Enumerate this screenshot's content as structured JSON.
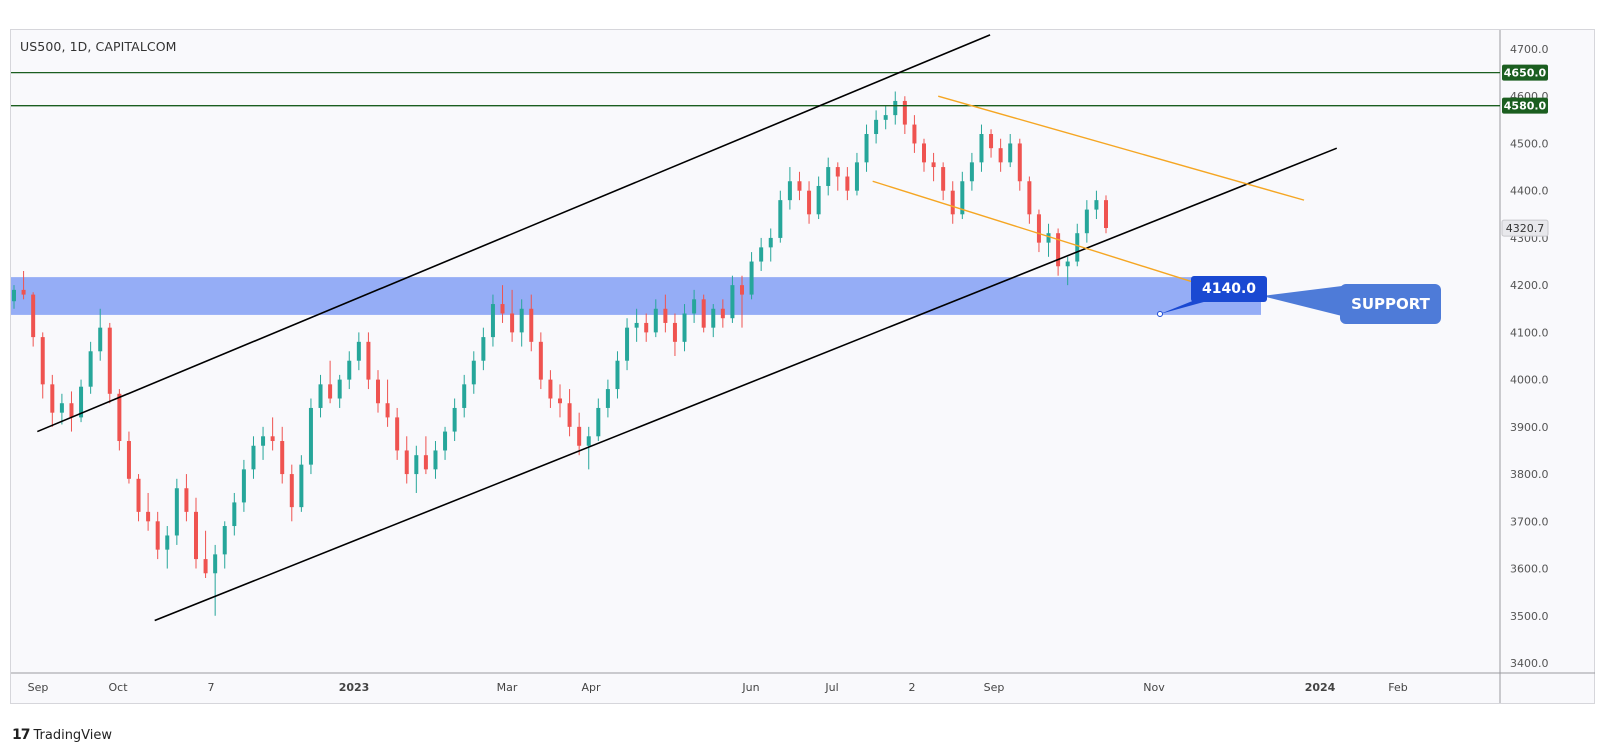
{
  "header": {
    "symbol_title": "US500, 1D, CAPITALCOM"
  },
  "footer": {
    "brand_logo": "17",
    "brand_name": "TradingView"
  },
  "annotations": {
    "price_callout": "4140.0",
    "support_callout": "SUPPORT"
  },
  "colors": {
    "up_candle": "#26a69a",
    "down_candle": "#ef5350",
    "support_zone": "#8fa9f6",
    "horizontal_level": "#1b5e20",
    "channel_line": "#000000",
    "flag_line": "#f5a623",
    "price_label_bg": "#1b5e20",
    "callout_blue": "#1a49d2"
  },
  "chart_data": {
    "type": "candlestick",
    "title": "US500, 1D, CAPITALCOM",
    "ylim": [
      3400,
      4700
    ],
    "y_ticks": [
      "3400.0",
      "3500.0",
      "3600.0",
      "3700.0",
      "3800.0",
      "3900.0",
      "4000.0",
      "4100.0",
      "4200.0",
      "4300.0",
      "4400.0",
      "4500.0",
      "4600.0",
      "4700.0"
    ],
    "x_ticks": [
      "Sep",
      "Oct",
      "7",
      "2023",
      "Mar",
      "Apr",
      "Jun",
      "Jul",
      "2",
      "Sep",
      "Nov",
      "2024",
      "Feb"
    ],
    "price_labels": [
      {
        "value": 4650.0,
        "text": "4650.0"
      },
      {
        "value": 4580.0,
        "text": "4580.0"
      },
      {
        "value": 4320.7,
        "text": "4320.7"
      }
    ],
    "support_zone": {
      "low": 4137,
      "high": 4217
    },
    "horizontal_levels": [
      4650,
      4580
    ],
    "ohlc": [
      [
        4166,
        4200,
        4150,
        4190
      ],
      [
        4190,
        4230,
        4170,
        4180
      ],
      [
        4180,
        4185,
        4070,
        4090
      ],
      [
        4090,
        4100,
        3960,
        3990
      ],
      [
        3990,
        4010,
        3900,
        3930
      ],
      [
        3930,
        3970,
        3905,
        3950
      ],
      [
        3950,
        3975,
        3890,
        3920
      ],
      [
        3920,
        4000,
        3910,
        3985
      ],
      [
        3985,
        4080,
        3970,
        4060
      ],
      [
        4060,
        4150,
        4040,
        4110
      ],
      [
        4110,
        4120,
        3950,
        3970
      ],
      [
        3970,
        3980,
        3850,
        3870
      ],
      [
        3870,
        3890,
        3780,
        3790
      ],
      [
        3790,
        3800,
        3700,
        3720
      ],
      [
        3720,
        3760,
        3680,
        3700
      ],
      [
        3700,
        3720,
        3620,
        3640
      ],
      [
        3640,
        3690,
        3600,
        3670
      ],
      [
        3670,
        3790,
        3650,
        3770
      ],
      [
        3770,
        3800,
        3700,
        3720
      ],
      [
        3720,
        3750,
        3600,
        3620
      ],
      [
        3620,
        3680,
        3580,
        3590
      ],
      [
        3590,
        3650,
        3500,
        3630
      ],
      [
        3630,
        3700,
        3600,
        3690
      ],
      [
        3690,
        3760,
        3670,
        3740
      ],
      [
        3740,
        3830,
        3720,
        3810
      ],
      [
        3810,
        3880,
        3790,
        3860
      ],
      [
        3860,
        3900,
        3830,
        3880
      ],
      [
        3880,
        3920,
        3850,
        3870
      ],
      [
        3870,
        3900,
        3780,
        3800
      ],
      [
        3800,
        3820,
        3700,
        3730
      ],
      [
        3730,
        3840,
        3720,
        3820
      ],
      [
        3820,
        3960,
        3800,
        3940
      ],
      [
        3940,
        4010,
        3920,
        3990
      ],
      [
        3990,
        4040,
        3950,
        3960
      ],
      [
        3960,
        4010,
        3940,
        4000
      ],
      [
        4000,
        4060,
        3980,
        4040
      ],
      [
        4040,
        4100,
        4020,
        4080
      ],
      [
        4080,
        4100,
        3980,
        4000
      ],
      [
        4000,
        4020,
        3930,
        3950
      ],
      [
        3950,
        4000,
        3900,
        3920
      ],
      [
        3920,
        3940,
        3830,
        3850
      ],
      [
        3850,
        3880,
        3780,
        3800
      ],
      [
        3800,
        3860,
        3760,
        3840
      ],
      [
        3840,
        3880,
        3800,
        3810
      ],
      [
        3810,
        3870,
        3790,
        3850
      ],
      [
        3850,
        3900,
        3830,
        3890
      ],
      [
        3890,
        3960,
        3870,
        3940
      ],
      [
        3940,
        4010,
        3920,
        3990
      ],
      [
        3990,
        4060,
        3970,
        4040
      ],
      [
        4040,
        4110,
        4020,
        4090
      ],
      [
        4090,
        4180,
        4070,
        4160
      ],
      [
        4160,
        4200,
        4120,
        4140
      ],
      [
        4140,
        4190,
        4080,
        4100
      ],
      [
        4100,
        4170,
        4070,
        4150
      ],
      [
        4150,
        4180,
        4060,
        4080
      ],
      [
        4080,
        4100,
        3980,
        4000
      ],
      [
        4000,
        4020,
        3940,
        3960
      ],
      [
        3960,
        3990,
        3920,
        3950
      ],
      [
        3950,
        3980,
        3880,
        3900
      ],
      [
        3900,
        3930,
        3840,
        3860
      ],
      [
        3860,
        3900,
        3810,
        3880
      ],
      [
        3880,
        3960,
        3870,
        3940
      ],
      [
        3940,
        4000,
        3920,
        3980
      ],
      [
        3980,
        4060,
        3960,
        4040
      ],
      [
        4040,
        4130,
        4020,
        4110
      ],
      [
        4110,
        4150,
        4080,
        4120
      ],
      [
        4120,
        4140,
        4080,
        4100
      ],
      [
        4100,
        4170,
        4090,
        4150
      ],
      [
        4150,
        4180,
        4100,
        4120
      ],
      [
        4120,
        4140,
        4050,
        4080
      ],
      [
        4080,
        4160,
        4060,
        4140
      ],
      [
        4140,
        4190,
        4120,
        4170
      ],
      [
        4170,
        4180,
        4100,
        4110
      ],
      [
        4110,
        4160,
        4090,
        4150
      ],
      [
        4150,
        4170,
        4110,
        4130
      ],
      [
        4130,
        4220,
        4120,
        4200
      ],
      [
        4200,
        4220,
        4110,
        4180
      ],
      [
        4180,
        4270,
        4170,
        4250
      ],
      [
        4250,
        4300,
        4230,
        4280
      ],
      [
        4280,
        4320,
        4250,
        4300
      ],
      [
        4300,
        4400,
        4290,
        4380
      ],
      [
        4380,
        4450,
        4360,
        4420
      ],
      [
        4420,
        4440,
        4380,
        4400
      ],
      [
        4400,
        4420,
        4330,
        4350
      ],
      [
        4350,
        4430,
        4340,
        4410
      ],
      [
        4410,
        4470,
        4390,
        4450
      ],
      [
        4450,
        4460,
        4400,
        4430
      ],
      [
        4430,
        4450,
        4380,
        4400
      ],
      [
        4400,
        4480,
        4390,
        4460
      ],
      [
        4460,
        4540,
        4440,
        4520
      ],
      [
        4520,
        4570,
        4500,
        4550
      ],
      [
        4550,
        4580,
        4530,
        4560
      ],
      [
        4560,
        4610,
        4540,
        4590
      ],
      [
        4590,
        4600,
        4520,
        4540
      ],
      [
        4540,
        4560,
        4480,
        4500
      ],
      [
        4500,
        4510,
        4440,
        4460
      ],
      [
        4460,
        4480,
        4420,
        4450
      ],
      [
        4450,
        4460,
        4380,
        4400
      ],
      [
        4400,
        4420,
        4330,
        4350
      ],
      [
        4350,
        4440,
        4340,
        4420
      ],
      [
        4420,
        4480,
        4400,
        4460
      ],
      [
        4460,
        4540,
        4440,
        4520
      ],
      [
        4520,
        4530,
        4470,
        4490
      ],
      [
        4490,
        4510,
        4440,
        4460
      ],
      [
        4460,
        4520,
        4450,
        4500
      ],
      [
        4500,
        4510,
        4400,
        4420
      ],
      [
        4420,
        4430,
        4330,
        4350
      ],
      [
        4350,
        4360,
        4270,
        4290
      ],
      [
        4290,
        4330,
        4260,
        4310
      ],
      [
        4310,
        4320,
        4220,
        4240
      ],
      [
        4240,
        4260,
        4200,
        4250
      ],
      [
        4250,
        4330,
        4240,
        4310
      ],
      [
        4310,
        4380,
        4290,
        4360
      ],
      [
        4360,
        4400,
        4340,
        4380
      ],
      [
        4380,
        4390,
        4310,
        4321
      ]
    ],
    "trendlines": [
      {
        "name": "channel-upper",
        "points": [
          [
            "2022-08-31",
            3890
          ],
          [
            "2023-08-15",
            4730
          ]
        ]
      },
      {
        "name": "channel-lower",
        "points": [
          [
            "2022-10-13",
            3490
          ],
          [
            "2023-12-20",
            4490
          ]
        ]
      },
      {
        "name": "flag-upper",
        "points": [
          [
            "2023-07-27",
            4600
          ],
          [
            "2023-12-08",
            4380
          ]
        ]
      },
      {
        "name": "flag-lower",
        "points": [
          [
            "2023-07-03",
            4420
          ],
          [
            "2023-11-01",
            4200
          ]
        ]
      }
    ]
  }
}
